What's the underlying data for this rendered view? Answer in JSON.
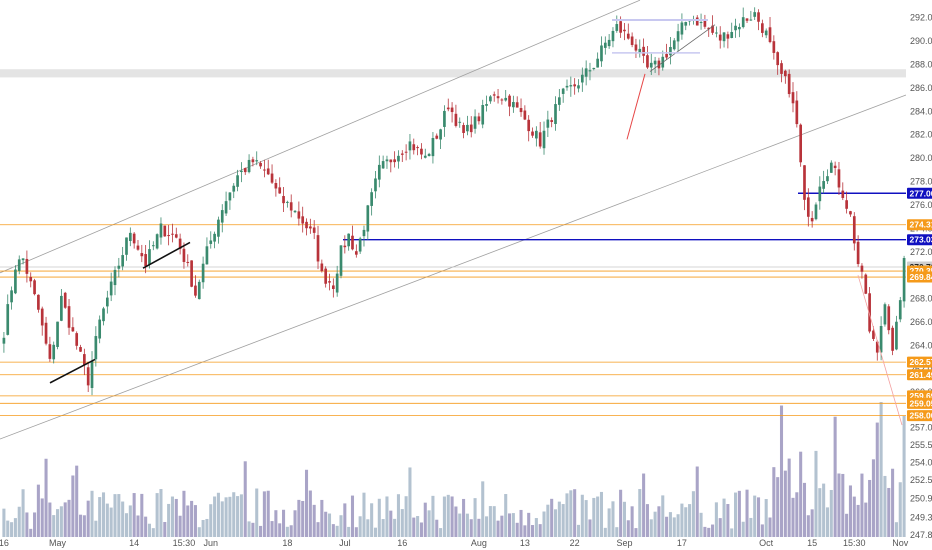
{
  "chart_data": {
    "type": "candlestick",
    "price_axis": {
      "min": 247.8,
      "max": 293.0,
      "ticks": [
        292.0,
        290.0,
        288.0,
        286.0,
        284.0,
        282.0,
        280.0,
        278.0,
        276.0,
        274.0,
        272.0,
        270.0,
        268.0,
        266.0,
        264.0,
        262.0,
        260.0,
        258.0,
        257.0,
        255.5,
        254.0,
        252.5,
        250.9,
        249.3,
        247.8
      ],
      "tick_labels": [
        "292.00",
        "290.00",
        "288.00",
        "286.00",
        "284.00",
        "282.00",
        "280.00",
        "278.00",
        "276.00",
        "274.00",
        "272.00",
        "270.00",
        "268.00",
        "266.00",
        "264.00",
        "262.00",
        "260.00",
        "258.00",
        "257.00",
        "255.50",
        "254.00",
        "252.50",
        "250.90",
        "249.30",
        "247.80"
      ]
    },
    "time_axis": {
      "labels": [
        "16",
        "May",
        "14",
        "15:30",
        "Jun",
        "18",
        "Jul",
        "16",
        "Aug",
        "13",
        "22",
        "Sep",
        "17",
        "Oct",
        "15",
        "15:30",
        "Nov"
      ],
      "positions": [
        0,
        14,
        34,
        47,
        54,
        74,
        89,
        104,
        124,
        136,
        149,
        162,
        177,
        199,
        211,
        222,
        234
      ],
      "bars": 236
    },
    "price_path": [
      [
        0,
        265.2
      ],
      [
        3,
        270.8
      ],
      [
        5,
        271.4
      ],
      [
        9,
        267.0
      ],
      [
        12,
        262.5
      ],
      [
        15,
        268.0
      ],
      [
        18,
        265.0
      ],
      [
        22,
        261.0
      ],
      [
        25,
        266.0
      ],
      [
        29,
        270.0
      ],
      [
        33,
        273.8
      ],
      [
        37,
        271.0
      ],
      [
        41,
        274.0
      ],
      [
        45,
        273.2
      ],
      [
        48,
        270.6
      ],
      [
        50,
        268.4
      ],
      [
        53,
        272.0
      ],
      [
        57,
        275.8
      ],
      [
        61,
        278.5
      ],
      [
        65,
        279.7
      ],
      [
        69,
        278.6
      ],
      [
        72,
        276.5
      ],
      [
        75,
        275.8
      ],
      [
        78,
        274.6
      ],
      [
        81,
        273.2
      ],
      [
        83,
        270.0
      ],
      [
        86,
        269.2
      ],
      [
        88,
        272.0
      ],
      [
        90,
        273.4
      ],
      [
        92,
        271.8
      ],
      [
        95,
        275.5
      ],
      [
        98,
        279.0
      ],
      [
        102,
        280.2
      ],
      [
        106,
        281.3
      ],
      [
        110,
        280.0
      ],
      [
        114,
        282.6
      ],
      [
        116,
        284.6
      ],
      [
        120,
        282.0
      ],
      [
        124,
        283.5
      ],
      [
        128,
        285.6
      ],
      [
        132,
        284.9
      ],
      [
        136,
        283.3
      ],
      [
        140,
        281.4
      ],
      [
        143,
        283.6
      ],
      [
        146,
        285.4
      ],
      [
        150,
        286.5
      ],
      [
        154,
        288.0
      ],
      [
        157,
        289.8
      ],
      [
        160,
        291.2
      ],
      [
        164,
        290.0
      ],
      [
        168,
        287.6
      ],
      [
        171,
        288.0
      ],
      [
        175,
        290.0
      ],
      [
        179,
        292.2
      ],
      [
        183,
        291.2
      ],
      [
        187,
        290.2
      ],
      [
        190,
        291.0
      ],
      [
        193,
        291.8
      ],
      [
        196,
        292.3
      ],
      [
        199,
        290.6
      ],
      [
        202,
        287.5
      ],
      [
        205,
        286.0
      ],
      [
        207,
        282.8
      ],
      [
        209,
        276.0
      ],
      [
        211,
        275.0
      ],
      [
        213,
        278.0
      ],
      [
        216,
        279.5
      ],
      [
        219,
        277.0
      ],
      [
        221,
        275.0
      ],
      [
        223,
        271.0
      ],
      [
        225,
        268.5
      ],
      [
        226,
        265.0
      ],
      [
        228,
        263.5
      ],
      [
        230,
        268.0
      ],
      [
        232,
        263.2
      ],
      [
        233,
        265.5
      ],
      [
        235,
        271.0
      ]
    ],
    "horizontal_levels": [
      {
        "price": 277.0,
        "label": "277.00",
        "color": "#1010c0"
      },
      {
        "price": 274.31,
        "label": "274.31",
        "color": "#f59a1a"
      },
      {
        "price": 273.03,
        "label": "273.03",
        "color": "#1010c0"
      },
      {
        "price": 270.7,
        "label": "270.70",
        "color": "#c8c8c8"
      },
      {
        "price": 270.35,
        "label": "270.35",
        "color": "#f59a1a"
      },
      {
        "price": 269.84,
        "label": "269.84",
        "color": "#f59a1a"
      },
      {
        "price": 262.57,
        "label": "262.57",
        "color": "#f59a1a"
      },
      {
        "price": 261.49,
        "label": "261.49",
        "color": "#f59a1a"
      },
      {
        "price": 259.69,
        "label": "259.69",
        "color": "#f59a1a"
      },
      {
        "price": 259.05,
        "label": "259.05",
        "color": "#f59a1a"
      },
      {
        "price": 258.0,
        "label": "258.00",
        "color": "#f59a1a"
      }
    ],
    "grid": false,
    "colors": {
      "up": "#3a8a6e",
      "down": "#b8333a",
      "volume_up": "#9aaec0",
      "volume_down": "#8c86b4",
      "channel": "#a0a0a0",
      "level_orange": "#f59a1a",
      "level_blue": "#1010c0"
    }
  }
}
